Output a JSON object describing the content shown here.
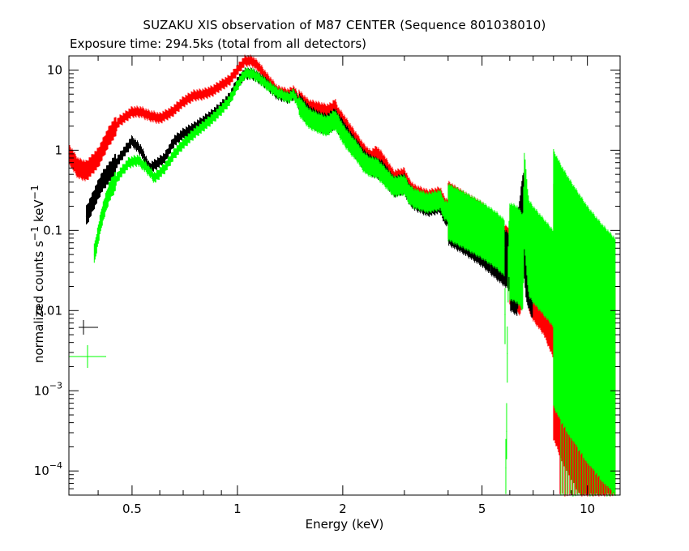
{
  "chart_data": {
    "type": "line",
    "title": "SUZAKU XIS observation of M87 CENTER (Sequence 801038010)",
    "subtitle": "Exposure time: 294.5ks (total from all detectors)",
    "xlabel": "Energy (keV)",
    "ylabel": "normalized counts s",
    "ylabel_sup1": "−1",
    "ylabel_mid": " keV",
    "ylabel_sup2": "−1",
    "xscale": "log",
    "yscale": "log",
    "xlim": [
      0.33,
      12.4
    ],
    "ylim": [
      5e-05,
      15
    ],
    "xticks": [
      {
        "value": 0.5,
        "label": "0.5"
      },
      {
        "value": 1,
        "label": "1"
      },
      {
        "value": 2,
        "label": "2"
      },
      {
        "value": 5,
        "label": "5"
      },
      {
        "value": 10,
        "label": "10"
      }
    ],
    "yticks": [
      {
        "value": 10,
        "label": "10",
        "sup": ""
      },
      {
        "value": 1,
        "label": "1",
        "sup": ""
      },
      {
        "value": 0.1,
        "label": "0.1",
        "sup": ""
      },
      {
        "value": 0.01,
        "label": "0.01",
        "sup": ""
      },
      {
        "value": 0.001,
        "label": "10",
        "sup": "−3"
      },
      {
        "value": 0.0001,
        "label": "10",
        "sup": "−4"
      }
    ],
    "series": [
      {
        "color": "#ff0000",
        "x": [
          0.33,
          0.35,
          0.37,
          0.4,
          0.43,
          0.46,
          0.5,
          0.53,
          0.56,
          0.6,
          0.65,
          0.7,
          0.75,
          0.8,
          0.85,
          0.9,
          0.95,
          1.0,
          1.05,
          1.1,
          1.15,
          1.2,
          1.3,
          1.4,
          1.45,
          1.5,
          1.6,
          1.7,
          1.8,
          1.85,
          1.9,
          1.95,
          2.0,
          2.1,
          2.2,
          2.3,
          2.4,
          2.5,
          2.6,
          2.8,
          3.0,
          3.1,
          3.2,
          3.5,
          3.8,
          3.9,
          4.0,
          4.5,
          5.0,
          5.5,
          5.85,
          5.95,
          6.2,
          6.45,
          6.6,
          6.7,
          6.8,
          7.0,
          7.5,
          8.0,
          8.5,
          9.0,
          10.0,
          11.0,
          12.0
        ],
        "y": [
          0.9,
          0.6,
          0.55,
          0.8,
          1.5,
          2.3,
          3.0,
          3.0,
          2.7,
          2.5,
          3.0,
          4.0,
          4.8,
          5.0,
          5.5,
          6.5,
          7.5,
          10,
          13,
          13,
          11,
          8.5,
          5.5,
          5.0,
          5.5,
          4.2,
          3.2,
          3.0,
          2.8,
          2.9,
          3.3,
          2.5,
          2.2,
          1.6,
          1.2,
          0.9,
          0.75,
          0.85,
          0.7,
          0.42,
          0.45,
          0.33,
          0.28,
          0.24,
          0.26,
          0.2,
          0.18,
          0.13,
          0.1,
          0.07,
          0.05,
          0.05,
          0.04,
          0.035,
          0.15,
          0.08,
          0.04,
          0.03,
          0.02,
          0.01,
          0.005,
          0.003,
          0.0015,
          0.0008,
          0.0005
        ]
      },
      {
        "color": "#000000",
        "x": [
          0.37,
          0.39,
          0.41,
          0.44,
          0.47,
          0.5,
          0.53,
          0.56,
          0.58,
          0.62,
          0.66,
          0.7,
          0.75,
          0.8,
          0.85,
          0.9,
          0.95,
          1.0,
          1.05,
          1.1,
          1.15,
          1.2,
          1.3,
          1.4,
          1.45,
          1.5,
          1.6,
          1.7,
          1.8,
          1.9,
          1.95,
          2.0,
          2.1,
          2.2,
          2.3,
          2.4,
          2.5,
          2.6,
          2.8,
          3.0,
          3.1,
          3.2,
          3.5,
          3.8,
          3.9,
          4.0,
          4.5,
          5.0,
          5.5,
          6.0,
          6.3,
          6.55,
          6.7,
          7.0
        ],
        "y": [
          0.15,
          0.25,
          0.4,
          0.6,
          0.9,
          1.3,
          1.0,
          0.6,
          0.65,
          0.8,
          1.3,
          1.6,
          1.9,
          2.3,
          2.8,
          3.5,
          4.5,
          7,
          9,
          9,
          8,
          7,
          5,
          4.5,
          5.0,
          3.8,
          2.7,
          2.3,
          2.1,
          2.5,
          2.1,
          1.8,
          1.3,
          1.0,
          0.75,
          0.65,
          0.6,
          0.55,
          0.35,
          0.38,
          0.28,
          0.24,
          0.2,
          0.22,
          0.16,
          0.15,
          0.11,
          0.08,
          0.055,
          0.04,
          0.035,
          0.14,
          0.05,
          0.03
        ]
      },
      {
        "color": "#00ff00",
        "x": [
          0.39,
          0.41,
          0.43,
          0.46,
          0.49,
          0.52,
          0.55,
          0.58,
          0.62,
          0.66,
          0.7,
          0.75,
          0.8,
          0.85,
          0.9,
          0.95,
          1.0,
          1.05,
          1.1,
          1.15,
          1.2,
          1.3,
          1.4,
          1.45,
          1.5,
          1.6,
          1.7,
          1.8,
          1.9,
          1.95,
          2.0,
          2.1,
          2.2,
          2.3,
          2.4,
          2.5,
          2.6,
          2.8,
          3.0,
          3.1,
          3.2,
          3.5,
          3.8,
          3.9,
          4.0,
          4.5,
          5.0,
          5.5,
          5.8,
          5.85,
          5.95,
          6.0,
          6.3,
          6.55,
          6.6,
          6.8,
          7.0,
          7.5,
          8.0,
          8.5,
          9.0,
          10.0,
          11.0,
          12.0
        ],
        "y": [
          0.05,
          0.15,
          0.3,
          0.5,
          0.7,
          0.75,
          0.6,
          0.45,
          0.6,
          0.9,
          1.2,
          1.6,
          2.0,
          2.5,
          3.2,
          4.2,
          6.5,
          9,
          9,
          8,
          6.8,
          5.2,
          4.5,
          5,
          3.6,
          2.5,
          2.2,
          2.0,
          2.4,
          2.0,
          1.6,
          1.2,
          0.95,
          0.7,
          0.62,
          0.6,
          0.5,
          0.35,
          0.37,
          0.28,
          0.25,
          0.22,
          0.24,
          0.18,
          0.17,
          0.13,
          0.1,
          0.075,
          0.06,
          5e-05,
          0.06,
          0.055,
          0.05,
          0.04,
          0.25,
          0.06,
          0.05,
          0.035,
          0.025,
          0.015,
          0.01,
          0.005,
          0.003,
          0.002
        ]
      }
    ],
    "legend_error_bars": [
      {
        "color": "#000000"
      },
      {
        "color": "#00ff00"
      }
    ],
    "grid": false
  }
}
